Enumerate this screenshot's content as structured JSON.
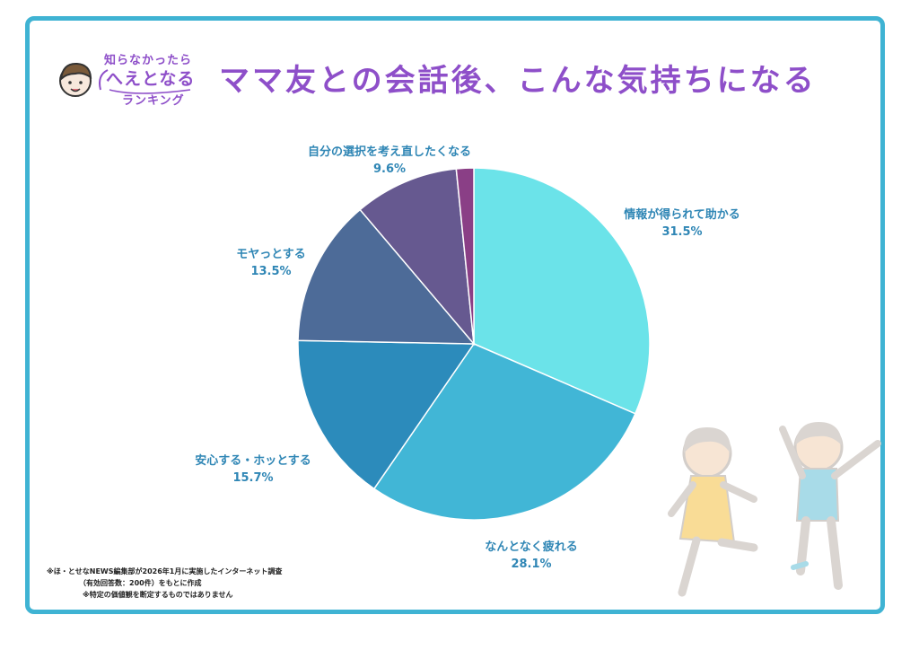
{
  "logo": {
    "line1": "知らなかったら",
    "line2": "へえとなる",
    "line3": "ランキング"
  },
  "title": "ママ友との会話後、こんな気持ちになる",
  "chart_data": {
    "type": "pie",
    "title": "ママ友との会話後、こんな気持ちになる",
    "slices": [
      {
        "label": "情報が得られて助かる",
        "value": 31.5,
        "display": "31.5%",
        "color": "#6be3e9"
      },
      {
        "label": "なんとなく疲れる",
        "value": 28.1,
        "display": "28.1%",
        "color": "#41b6d6"
      },
      {
        "label": "安心する・ホッとする",
        "value": 15.7,
        "display": "15.7%",
        "color": "#2c8bbb"
      },
      {
        "label": "モヤっとする",
        "value": 13.5,
        "display": "13.5%",
        "color": "#4d6b98"
      },
      {
        "label": "自分の選択を考え直したくなる",
        "value": 9.6,
        "display": "9.6%",
        "color": "#665990"
      },
      {
        "label": "",
        "value": 1.6,
        "display": "",
        "color": "#8a3f86"
      }
    ],
    "start_angle": "12 o'clock",
    "direction": "clockwise"
  },
  "footnote": {
    "line1": "※ほ・とせなNEWS編集部が2026年1月に実施したインターネット調査",
    "line2": "（有効回答数：200件）をもとに作成",
    "line3": "※特定の価値観を断定するものではありません"
  },
  "colors": {
    "frame": "#3fb3d3",
    "title": "#8e4fc9",
    "label": "#2f86b5"
  }
}
